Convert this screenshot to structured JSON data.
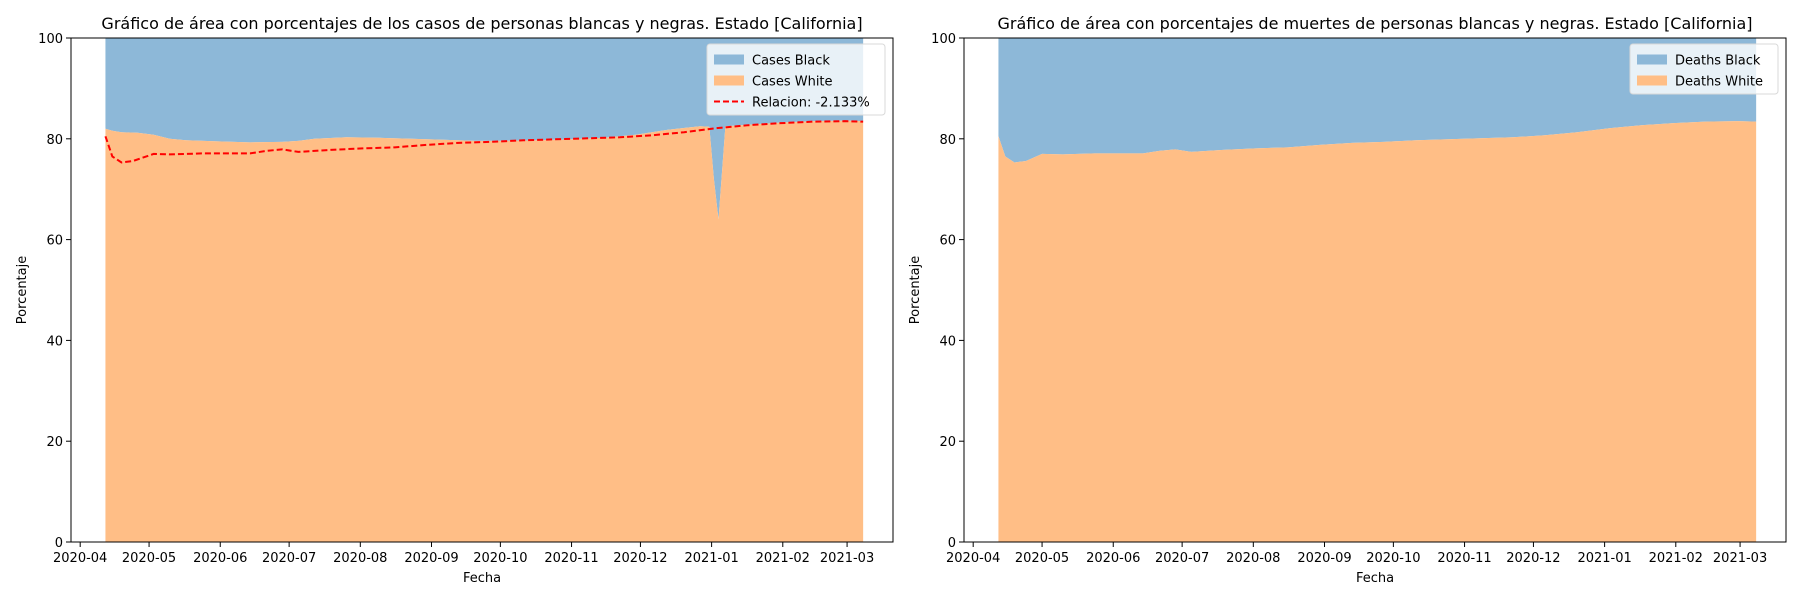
{
  "chart_data": [
    {
      "type": "area",
      "stacked": true,
      "percent": true,
      "title": "Gráfico de área con porcentajes de los casos de personas blancas y negras. Estado [California]",
      "xlabel": "Fecha",
      "ylabel": "Porcentaje",
      "ylim": [
        0,
        100
      ],
      "xlim": [
        "2020-03-28",
        "2021-03-21"
      ],
      "x_ticks": [
        "2020-04-01",
        "2020-05-01",
        "2020-06-01",
        "2020-07-01",
        "2020-08-01",
        "2020-09-01",
        "2020-10-01",
        "2020-11-01",
        "2020-12-01",
        "2021-01-01",
        "2021-02-01",
        "2021-03-01"
      ],
      "x_tick_labels": [
        "2020-04",
        "2020-05",
        "2020-06",
        "2020-07",
        "2020-08",
        "2020-09",
        "2020-10",
        "2020-11",
        "2020-12",
        "2021-01",
        "2021-02",
        "2021-03"
      ],
      "y_ticks": [
        0,
        20,
        40,
        60,
        80,
        100
      ],
      "legend_position": "top-right",
      "x": [
        "2020-04-12",
        "2020-04-15",
        "2020-04-19",
        "2020-04-26",
        "2020-05-03",
        "2020-05-10",
        "2020-05-17",
        "2020-05-31",
        "2020-06-14",
        "2020-06-28",
        "2020-07-05",
        "2020-07-12",
        "2020-07-26",
        "2020-08-09",
        "2020-08-23",
        "2020-09-06",
        "2020-09-20",
        "2020-10-04",
        "2020-10-18",
        "2020-11-01",
        "2020-11-15",
        "2020-11-29",
        "2020-12-13",
        "2020-12-27",
        "2020-12-31",
        "2021-01-02",
        "2021-01-04",
        "2021-01-07",
        "2021-01-17",
        "2021-01-31",
        "2021-02-14",
        "2021-02-28",
        "2021-03-08"
      ],
      "series": [
        {
          "name": "Cases White",
          "color": "#ffbe86",
          "values": [
            82.0,
            81.6,
            81.3,
            81.2,
            80.8,
            80.0,
            79.7,
            79.5,
            79.3,
            79.4,
            79.6,
            80.0,
            80.3,
            80.2,
            80.0,
            79.8,
            79.6,
            79.6,
            79.7,
            79.9,
            80.2,
            80.8,
            81.8,
            82.5,
            82.4,
            72.0,
            64.0,
            82.5,
            82.8,
            83.2,
            83.5,
            83.6,
            83.5
          ]
        },
        {
          "name": "Cases Black",
          "color": "#8db8d8",
          "values": [
            18.0,
            18.4,
            18.7,
            18.8,
            19.2,
            20.0,
            20.3,
            20.5,
            20.7,
            20.6,
            20.4,
            20.0,
            19.7,
            19.8,
            20.0,
            20.2,
            20.4,
            20.4,
            20.3,
            20.1,
            19.8,
            19.2,
            18.2,
            17.5,
            17.6,
            28.0,
            36.0,
            17.5,
            17.2,
            16.8,
            16.5,
            16.4,
            16.5
          ]
        }
      ],
      "line": {
        "name": "Relacion: -2.133%",
        "color": "#ff0000",
        "style": "dashed",
        "x": [
          "2020-04-12",
          "2020-04-15",
          "2020-04-19",
          "2020-04-24",
          "2020-05-03",
          "2020-05-10",
          "2020-05-17",
          "2020-05-24",
          "2020-05-31",
          "2020-06-14",
          "2020-06-21",
          "2020-06-28",
          "2020-07-05",
          "2020-07-19",
          "2020-08-02",
          "2020-08-16",
          "2020-08-30",
          "2020-09-13",
          "2020-09-27",
          "2020-10-11",
          "2020-10-25",
          "2020-11-08",
          "2020-11-22",
          "2020-12-06",
          "2020-12-20",
          "2021-01-03",
          "2021-01-17",
          "2021-01-31",
          "2021-02-14",
          "2021-02-28",
          "2021-03-08"
        ],
        "values": [
          80.5,
          76.5,
          75.3,
          75.6,
          77.0,
          76.9,
          77.0,
          77.1,
          77.1,
          77.1,
          77.6,
          77.9,
          77.4,
          77.8,
          78.1,
          78.3,
          78.8,
          79.2,
          79.4,
          79.7,
          79.9,
          80.1,
          80.3,
          80.7,
          81.3,
          82.1,
          82.7,
          83.1,
          83.4,
          83.5,
          83.4
        ]
      }
    },
    {
      "type": "area",
      "stacked": true,
      "percent": true,
      "title": "Gráfico de área con porcentajes de muertes de personas blancas y negras. Estado [California]",
      "xlabel": "Fecha",
      "ylabel": "Porcentaje",
      "ylim": [
        0,
        100
      ],
      "xlim": [
        "2020-03-28",
        "2021-03-21"
      ],
      "x_ticks": [
        "2020-04-01",
        "2020-05-01",
        "2020-06-01",
        "2020-07-01",
        "2020-08-01",
        "2020-09-01",
        "2020-10-01",
        "2020-11-01",
        "2020-12-01",
        "2021-01-01",
        "2021-02-01",
        "2021-03-01"
      ],
      "x_tick_labels": [
        "2020-04",
        "2020-05",
        "2020-06",
        "2020-07",
        "2020-08",
        "2020-09",
        "2020-10",
        "2020-11",
        "2020-12",
        "2021-01",
        "2021-02",
        "2021-03"
      ],
      "y_ticks": [
        0,
        20,
        40,
        60,
        80,
        100
      ],
      "legend_position": "top-right",
      "x": [
        "2020-04-12",
        "2020-04-15",
        "2020-04-19",
        "2020-04-24",
        "2020-05-01",
        "2020-05-10",
        "2020-05-17",
        "2020-05-24",
        "2020-05-31",
        "2020-06-14",
        "2020-06-21",
        "2020-06-28",
        "2020-07-05",
        "2020-07-19",
        "2020-08-02",
        "2020-08-16",
        "2020-08-30",
        "2020-09-13",
        "2020-09-27",
        "2020-10-11",
        "2020-10-25",
        "2020-11-08",
        "2020-11-22",
        "2020-12-06",
        "2020-12-20",
        "2021-01-03",
        "2021-01-17",
        "2021-01-31",
        "2021-02-14",
        "2021-02-28",
        "2021-03-08"
      ],
      "series": [
        {
          "name": "Deaths White",
          "color": "#ffbe86",
          "values": [
            80.5,
            76.5,
            75.3,
            75.6,
            77.0,
            76.9,
            77.0,
            77.1,
            77.1,
            77.1,
            77.6,
            77.9,
            77.4,
            77.8,
            78.1,
            78.3,
            78.8,
            79.2,
            79.4,
            79.7,
            79.9,
            80.1,
            80.3,
            80.7,
            81.3,
            82.1,
            82.7,
            83.1,
            83.4,
            83.5,
            83.4
          ]
        },
        {
          "name": "Deaths Black",
          "color": "#8db8d8",
          "values": [
            19.5,
            23.5,
            24.7,
            24.4,
            23.0,
            23.1,
            23.0,
            22.9,
            22.9,
            22.9,
            22.4,
            22.1,
            22.6,
            22.2,
            21.9,
            21.7,
            21.2,
            20.8,
            20.6,
            20.3,
            20.1,
            19.9,
            19.7,
            19.3,
            18.7,
            17.9,
            17.3,
            16.9,
            16.6,
            16.5,
            16.6
          ]
        }
      ]
    }
  ]
}
